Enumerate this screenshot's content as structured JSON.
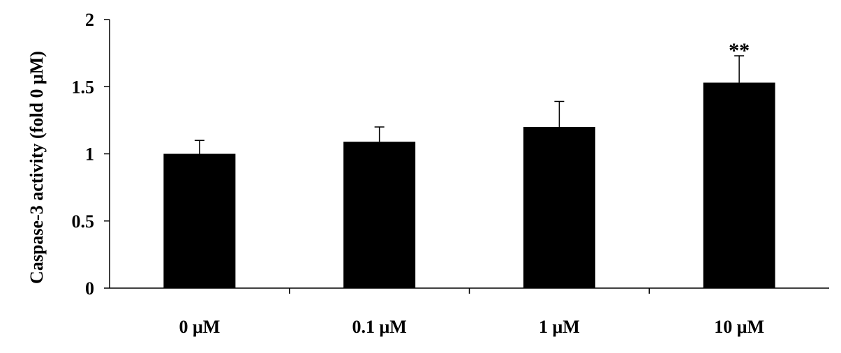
{
  "chart_data": {
    "type": "bar",
    "title": "",
    "xlabel": "",
    "ylabel": "Caspase-3 activity (fold 0 μM)",
    "categories": [
      "0 μM",
      "0.1 μM",
      "1 μM",
      "10 μM"
    ],
    "values": [
      1.0,
      1.09,
      1.2,
      1.53
    ],
    "error_bars": [
      0.1,
      0.11,
      0.19,
      0.2
    ],
    "annotations": [
      "",
      "",
      "",
      "**"
    ],
    "ylim": [
      0,
      2
    ],
    "yticks": [
      {
        "value": 0,
        "label": "0"
      },
      {
        "value": 0.5,
        "label": "0.5"
      },
      {
        "value": 1,
        "label": "1"
      },
      {
        "value": 1.5,
        "label": "1.5"
      },
      {
        "value": 2,
        "label": "2"
      }
    ],
    "grid": false,
    "bar_color": "#000000"
  }
}
